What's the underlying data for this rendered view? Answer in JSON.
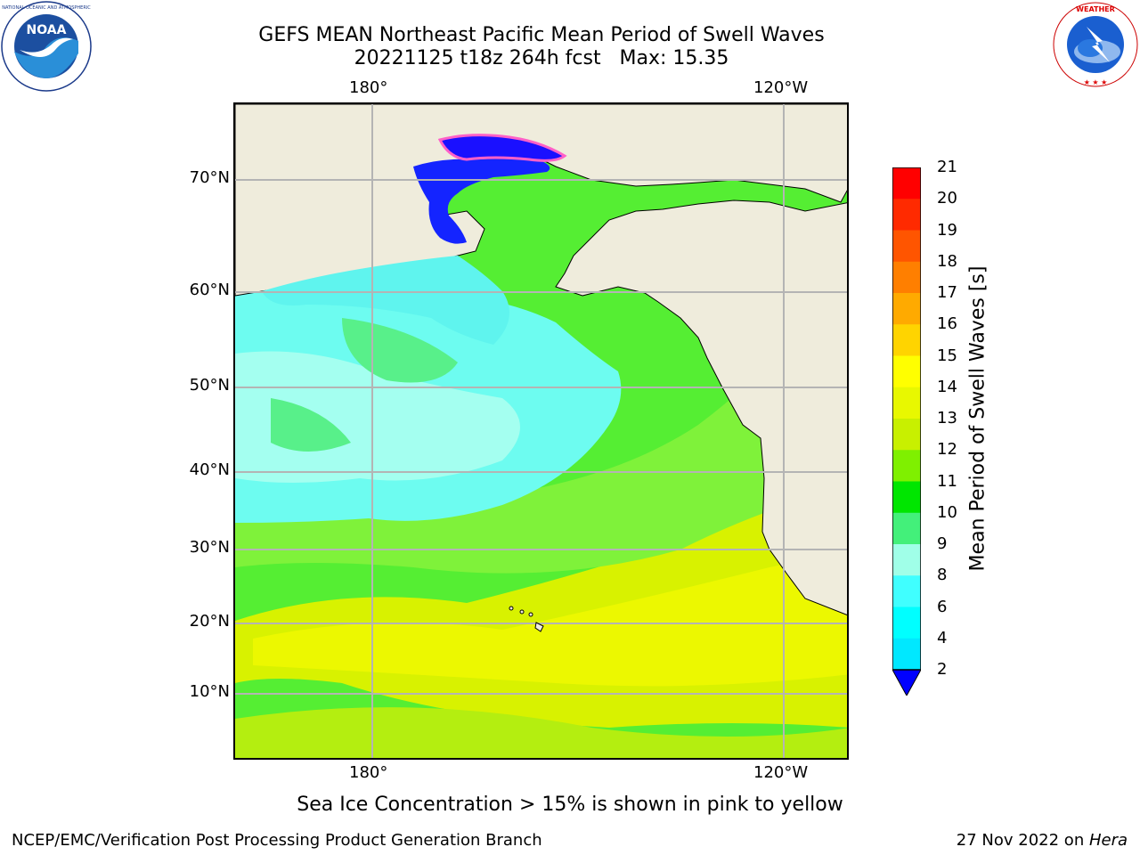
{
  "title_line1": "GEFS MEAN Northeast Pacific Mean Period of Swell Waves",
  "title_line2": "20221125 t18z 264h fcst   Max: 15.35",
  "logos": {
    "left": {
      "icon": "noaa-logo",
      "ring_text": "NATIONAL OCEANIC AND ATMOSPHERIC ADMINISTRATION · U.S. DEPARTMENT OF COMMERCE",
      "center_text": "NOAA"
    },
    "right": {
      "icon": "nws-logo",
      "ring_text": "NATIONAL WEATHER SERVICE"
    }
  },
  "map": {
    "lat_labels": [
      "70°N",
      "60°N",
      "50°N",
      "40°N",
      "30°N",
      "20°N",
      "10°N"
    ],
    "lon_labels_top": [
      "180°",
      "120°W"
    ],
    "lon_labels_bottom": [
      "180°",
      "120°W"
    ],
    "land_color": "#efecdc",
    "gridline_color": "#b4b4b4",
    "max_value": 15.35
  },
  "colorbar": {
    "label": "Mean Period of Swell Waves [s]",
    "ticks": [
      "21",
      "20",
      "19",
      "18",
      "17",
      "16",
      "15",
      "14",
      "13",
      "12",
      "11",
      "10",
      "9",
      "8",
      "6",
      "4",
      "2"
    ],
    "colors": [
      "#ff0000",
      "#ff2a00",
      "#ff5500",
      "#ff7f00",
      "#ffaa00",
      "#ffd400",
      "#ffff00",
      "#e8f800",
      "#c8f000",
      "#7ff000",
      "#00e600",
      "#43f07a",
      "#a0ffe8",
      "#40ffff",
      "#00ffff",
      "#00e8ff",
      "#0080ff"
    ],
    "extend_color": "#0000ff"
  },
  "note": "Sea Ice Concentration > 15% is shown in pink to yellow",
  "footer_left": "NCEP/EMC/Verification Post Processing Product Generation Branch",
  "footer_right_prefix": "27 Nov 2022 on ",
  "footer_right_italic": "Hera"
}
